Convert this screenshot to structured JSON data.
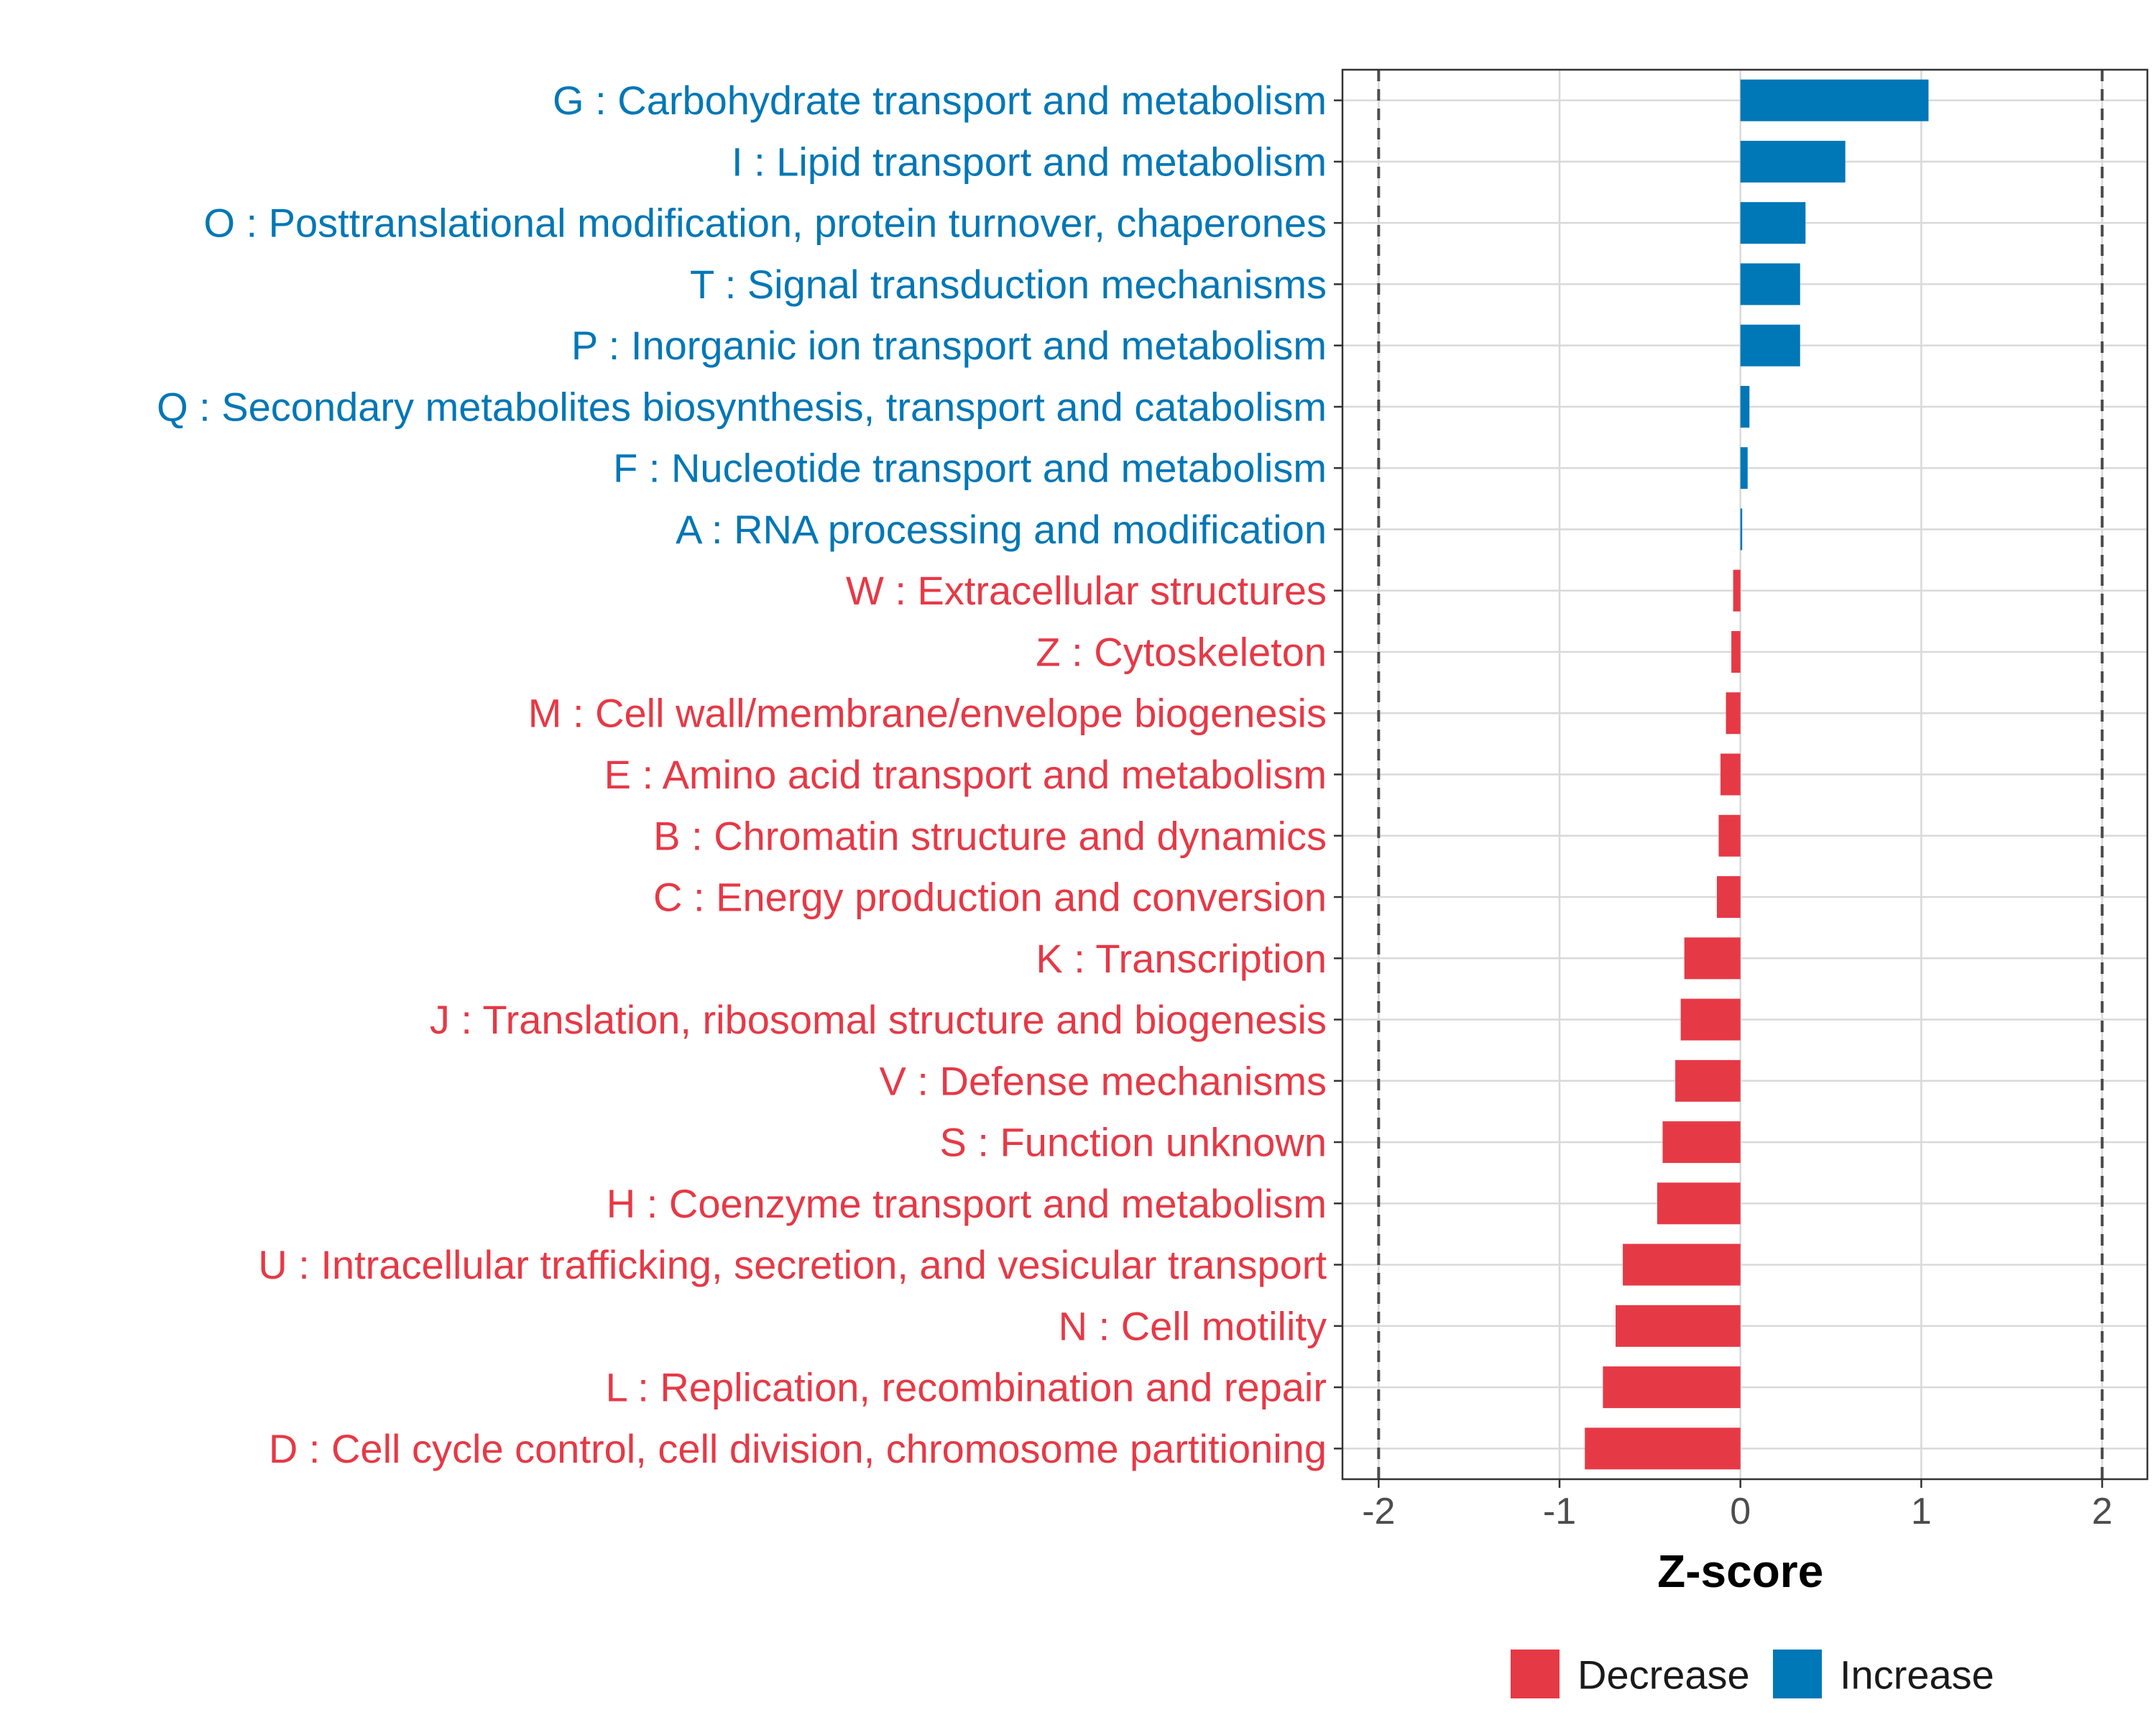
{
  "chart_data": {
    "type": "bar",
    "orientation": "horizontal",
    "xlabel": "Z-score",
    "xlim": [
      -2.2,
      2.25
    ],
    "xticks": [
      -2,
      -1,
      0,
      1,
      2
    ],
    "xtick_labels": [
      "-2",
      "-1",
      "0",
      "1",
      "2"
    ],
    "reference_lines": [
      -2,
      2
    ],
    "grid": true,
    "legend_position": "bottom",
    "legend": [
      {
        "label": "Decrease",
        "color": "#E63946"
      },
      {
        "label": "Increase",
        "color": "#0077B6"
      }
    ],
    "colors": {
      "Decrease": "#E63946",
      "Increase": "#0077B6"
    },
    "categories": [
      "G : Carbohydrate transport and metabolism",
      "I : Lipid transport and metabolism",
      "O : Posttranslational modification, protein turnover, chaperones",
      "T : Signal transduction mechanisms",
      "P : Inorganic ion transport and metabolism",
      "Q : Secondary metabolites biosynthesis, transport and catabolism",
      "F : Nucleotide transport and metabolism",
      "A : RNA processing and modification",
      "W : Extracellular structures",
      "Z : Cytoskeleton",
      "M : Cell wall/membrane/envelope biogenesis",
      "E : Amino acid transport and metabolism",
      "B : Chromatin structure and dynamics",
      "C : Energy production and conversion",
      "K : Transcription",
      "J : Translation, ribosomal structure and biogenesis",
      "V : Defense mechanisms",
      "S : Function unknown",
      "H : Coenzyme transport and metabolism",
      "U : Intracellular trafficking, secretion, and vesicular transport",
      "N : Cell motility",
      "L : Replication, recombination and repair",
      "D : Cell cycle control, cell division, chromosome partitioning"
    ],
    "values": [
      1.04,
      0.58,
      0.36,
      0.33,
      0.33,
      0.05,
      0.04,
      0.01,
      -0.04,
      -0.05,
      -0.08,
      -0.11,
      -0.12,
      -0.13,
      -0.31,
      -0.33,
      -0.36,
      -0.43,
      -0.46,
      -0.65,
      -0.69,
      -0.76,
      -0.86
    ],
    "groups": [
      "Increase",
      "Increase",
      "Increase",
      "Increase",
      "Increase",
      "Increase",
      "Increase",
      "Increase",
      "Decrease",
      "Decrease",
      "Decrease",
      "Decrease",
      "Decrease",
      "Decrease",
      "Decrease",
      "Decrease",
      "Decrease",
      "Decrease",
      "Decrease",
      "Decrease",
      "Decrease",
      "Decrease",
      "Decrease"
    ]
  }
}
